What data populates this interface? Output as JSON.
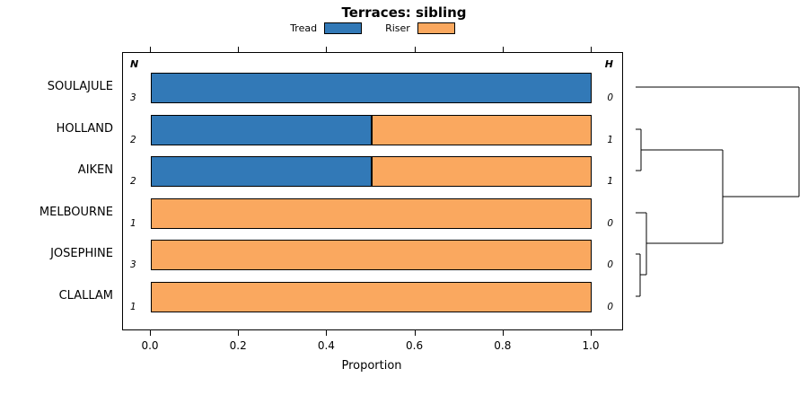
{
  "title": "Terraces: sibling",
  "legend": {
    "items": [
      {
        "label": "Tread",
        "color": "#3279B7"
      },
      {
        "label": "Riser",
        "color": "#FAA85F"
      }
    ]
  },
  "chart_data": {
    "type": "bar",
    "orientation": "horizontal",
    "stacked": true,
    "categories": [
      "SOULAJULE",
      "HOLLAND",
      "AIKEN",
      "MELBOURNE",
      "JOSEPHINE",
      "CLALLAM"
    ],
    "series": [
      {
        "name": "Tread",
        "color": "#3279B7",
        "values": [
          1.0,
          0.5,
          0.5,
          0.0,
          0.0,
          0.0
        ]
      },
      {
        "name": "Riser",
        "color": "#FAA85F",
        "values": [
          0.0,
          0.5,
          0.5,
          1.0,
          1.0,
          1.0
        ]
      }
    ],
    "n_header": "N",
    "n_values": [
      3,
      2,
      2,
      1,
      3,
      1
    ],
    "h_header": "H",
    "h_values": [
      0,
      1,
      1,
      0,
      0,
      0
    ],
    "xlabel": "Proportion",
    "x_ticks": [
      "0.0",
      "0.2",
      "0.4",
      "0.6",
      "0.8",
      "1.0"
    ],
    "x_tick_values": [
      0,
      0.2,
      0.4,
      0.6,
      0.8,
      1.0
    ],
    "xlim": [
      0,
      1
    ],
    "grid": false,
    "legend_position": "top",
    "dendrogram": {
      "description": "hierarchical clustering of sites: (JOSEPHINE,CLALLAM) then +MELBOURNE; (HOLLAND,AIKEN); those two clusters merge; SOULAJULE joins last at max height",
      "segments": [
        {
          "x1": 708,
          "y1": 97,
          "x2": 890,
          "y2": 97
        },
        {
          "x1": 890,
          "y1": 97,
          "x2": 890,
          "y2": 219
        },
        {
          "x1": 805,
          "y1": 219,
          "x2": 890,
          "y2": 219
        },
        {
          "x1": 708,
          "y1": 144,
          "x2": 714,
          "y2": 144
        },
        {
          "x1": 708,
          "y1": 190,
          "x2": 714,
          "y2": 190
        },
        {
          "x1": 714,
          "y1": 144,
          "x2": 714,
          "y2": 190
        },
        {
          "x1": 714,
          "y1": 167,
          "x2": 805,
          "y2": 167
        },
        {
          "x1": 805,
          "y1": 167,
          "x2": 805,
          "y2": 271
        },
        {
          "x1": 708,
          "y1": 237,
          "x2": 720,
          "y2": 237
        },
        {
          "x1": 708,
          "y1": 283,
          "x2": 713,
          "y2": 283
        },
        {
          "x1": 708,
          "y1": 330,
          "x2": 713,
          "y2": 330
        },
        {
          "x1": 713,
          "y1": 283,
          "x2": 713,
          "y2": 330
        },
        {
          "x1": 713,
          "y1": 306,
          "x2": 720,
          "y2": 306
        },
        {
          "x1": 720,
          "y1": 237,
          "x2": 720,
          "y2": 306
        },
        {
          "x1": 720,
          "y1": 271,
          "x2": 805,
          "y2": 271
        }
      ]
    }
  }
}
